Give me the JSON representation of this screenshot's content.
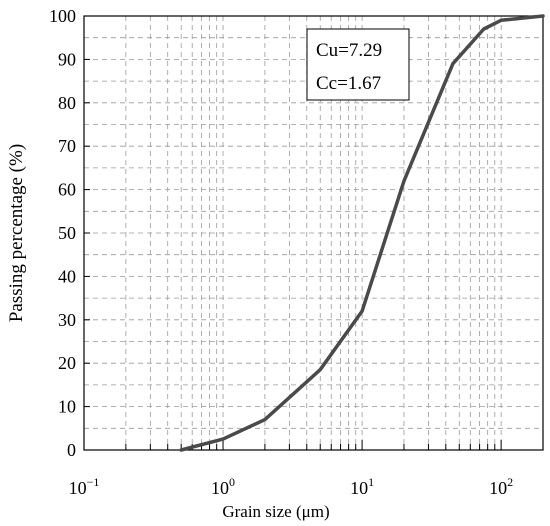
{
  "chart_data": {
    "type": "line",
    "title": "",
    "xlabel": "Grain size (μm)",
    "ylabel": "Passing percentage (%)",
    "xscale": "log",
    "xlim": [
      0.1,
      200
    ],
    "ylim": [
      0,
      100
    ],
    "grid": true,
    "x_ticks": [
      {
        "base": "10",
        "exp": "−1"
      },
      {
        "base": "10",
        "exp": "0"
      },
      {
        "base": "10",
        "exp": "1"
      },
      {
        "base": "10",
        "exp": "2"
      }
    ],
    "y_ticks": [
      "0",
      "10",
      "20",
      "30",
      "40",
      "50",
      "60",
      "70",
      "80",
      "90",
      "100"
    ],
    "annotation": {
      "lines": [
        "Cu=7.29",
        "Cc=1.67"
      ],
      "position": "top-center"
    },
    "series": [
      {
        "color": "#4a4a4a",
        "x": [
          0.5,
          1,
          2,
          5,
          10,
          20,
          45,
          75,
          100,
          200
        ],
        "y": [
          0,
          2.5,
          7,
          18.5,
          32,
          62,
          89,
          97,
          99,
          100
        ]
      }
    ]
  }
}
